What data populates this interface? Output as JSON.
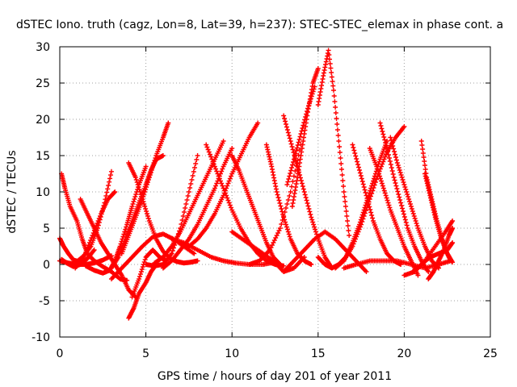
{
  "chart_data": {
    "type": "scatter",
    "title": "dSTEC Iono. truth (cagz, Lon=8, Lat=39, h=237): STEC-STEC_elemax in phase cont. a",
    "xlabel": "GPS time / hours of day 201 of year 2011",
    "ylabel": "dSTEC  / TECUs",
    "xlim": [
      0,
      25
    ],
    "ylim": [
      -10,
      30
    ],
    "xticks": [
      0,
      5,
      10,
      15,
      20,
      25
    ],
    "yticks": [
      -10,
      -5,
      0,
      5,
      10,
      15,
      20,
      25,
      30
    ],
    "grid": true,
    "marker": "+",
    "color": "#ff0000",
    "series": [
      {
        "x": [
          0.0,
          0.2,
          0.5,
          0.8,
          1.1
        ],
        "y": [
          3.6,
          2.6,
          1.5,
          0.6,
          0.4
        ]
      },
      {
        "x": [
          0.1,
          0.4,
          0.8,
          1.2,
          1.6,
          2.0
        ],
        "y": [
          0.7,
          0.2,
          -0.3,
          0.0,
          0.8,
          2.0
        ]
      },
      {
        "x": [
          0.0,
          0.5,
          1.0,
          1.5,
          2.0,
          2.5,
          3.0
        ],
        "y": [
          0.5,
          0.2,
          0.0,
          0.0,
          0.2,
          0.6,
          1.2
        ]
      },
      {
        "x": [
          0.1,
          0.3,
          0.6,
          1.0,
          1.3,
          1.6,
          2.0,
          2.5,
          3.0,
          3.5,
          3.9
        ],
        "y": [
          12.5,
          10.5,
          8.0,
          6.0,
          3.5,
          1.5,
          0.5,
          -0.3,
          -1.0,
          -2.0,
          -2.2
        ]
      },
      {
        "x": [
          1.2,
          1.6,
          2.0,
          2.4,
          2.8,
          3.2,
          3.6,
          4.0,
          4.4
        ],
        "y": [
          9.0,
          7.0,
          5.0,
          3.0,
          1.5,
          0.0,
          -1.5,
          -3.5,
          -4.5
        ]
      },
      {
        "x": [
          0.9,
          1.4,
          1.9,
          2.4,
          2.8,
          3.2
        ],
        "y": [
          -0.5,
          1.0,
          4.0,
          7.0,
          9.0,
          10.0
        ]
      },
      {
        "x": [
          1.0,
          1.4,
          1.8,
          2.2,
          2.6,
          3.0
        ],
        "y": [
          0.4,
          1.2,
          2.5,
          5.0,
          8.5,
          12.8
        ]
      },
      {
        "x": [
          1.5,
          2.0,
          2.5,
          2.9,
          3.2,
          3.5,
          3.9,
          4.2,
          4.6,
          5.0
        ],
        "y": [
          -0.2,
          -0.8,
          -1.2,
          -0.8,
          0.5,
          2.5,
          5.5,
          8.0,
          11.0,
          13.5
        ]
      },
      {
        "x": [
          3.0,
          3.4,
          3.8,
          4.2,
          4.6,
          5.0,
          5.3,
          5.6,
          6.0
        ],
        "y": [
          -0.5,
          1.0,
          3.5,
          6.0,
          8.5,
          11.0,
          13.0,
          14.5,
          15.0
        ]
      },
      {
        "x": [
          3.6,
          4.0,
          4.4,
          4.8,
          5.2,
          5.6,
          6.0,
          6.3
        ],
        "y": [
          1.5,
          4.0,
          6.5,
          9.0,
          12.0,
          15.0,
          17.5,
          19.5
        ]
      },
      {
        "x": [
          4.0,
          4.3,
          4.6,
          5.0,
          5.3,
          5.6
        ],
        "y": [
          -7.4,
          -6.0,
          -4.0,
          -2.5,
          -1.0,
          0.0
        ]
      },
      {
        "x": [
          4.2,
          4.6,
          5.0,
          5.4,
          5.8,
          6.2
        ],
        "y": [
          -4.5,
          -2.0,
          1.0,
          2.0,
          1.0,
          0.5
        ]
      },
      {
        "x": [
          3.0,
          3.6,
          4.2,
          4.8,
          5.4,
          6.0,
          6.6,
          7.2,
          7.8
        ],
        "y": [
          -2.0,
          -0.5,
          1.0,
          2.5,
          3.8,
          4.2,
          3.5,
          2.5,
          1.5
        ]
      },
      {
        "x": [
          4.0,
          4.4,
          4.8,
          5.2,
          5.6,
          6.0,
          6.4,
          6.8,
          7.2,
          7.6,
          8.0
        ],
        "y": [
          14.0,
          12.0,
          9.0,
          6.0,
          3.5,
          1.8,
          0.8,
          0.4,
          0.2,
          0.3,
          0.5
        ]
      },
      {
        "x": [
          5.0,
          5.5,
          6.0,
          6.5,
          7.0,
          7.5,
          8.0
        ],
        "y": [
          0.0,
          -0.2,
          0.0,
          1.5,
          5.0,
          10.0,
          15.0
        ]
      },
      {
        "x": [
          5.5,
          6.0,
          6.5,
          7.0,
          7.5,
          8.0,
          8.5,
          9.0,
          9.5
        ],
        "y": [
          0.2,
          1.0,
          2.5,
          4.5,
          7.0,
          9.5,
          12.0,
          14.5,
          17.0
        ]
      },
      {
        "x": [
          6.0,
          6.5,
          7.0,
          7.5,
          8.0,
          8.5,
          9.0,
          9.5,
          10.0
        ],
        "y": [
          -0.5,
          0.5,
          2.0,
          3.5,
          5.5,
          8.0,
          10.5,
          13.5,
          16.0
        ]
      },
      {
        "x": [
          7.5,
          8.0,
          8.5,
          9.0,
          9.5,
          10.0,
          10.5,
          11.0,
          11.5
        ],
        "y": [
          2.5,
          3.5,
          5.0,
          7.0,
          9.5,
          12.5,
          15.0,
          17.5,
          19.5
        ]
      },
      {
        "x": [
          6.5,
          7.2,
          8.0,
          8.8,
          9.5,
          10.2,
          11.0,
          11.8,
          12.5
        ],
        "y": [
          3.5,
          3.0,
          2.0,
          1.0,
          0.5,
          0.2,
          0.0,
          0.0,
          0.3
        ]
      },
      {
        "x": [
          8.5,
          9.0,
          9.5,
          10.0,
          10.5,
          11.0,
          11.5,
          12.0,
          12.5,
          13.0
        ],
        "y": [
          16.5,
          13.5,
          10.5,
          7.5,
          5.0,
          3.0,
          1.5,
          0.5,
          0.0,
          -0.2
        ]
      },
      {
        "x": [
          10.0,
          10.4,
          10.8,
          11.2,
          11.6,
          12.0,
          12.4,
          12.8
        ],
        "y": [
          15.0,
          13.0,
          10.5,
          8.0,
          5.5,
          3.0,
          1.0,
          0.0
        ]
      },
      {
        "x": [
          11.0,
          11.6,
          12.2,
          12.8,
          13.4,
          14.0
        ],
        "y": [
          0.0,
          0.5,
          2.0,
          5.0,
          10.0,
          16.5
        ]
      },
      {
        "x": [
          12.0,
          12.3,
          12.6,
          13.0,
          13.4,
          13.8,
          14.2,
          14.6
        ],
        "y": [
          16.5,
          13.5,
          10.0,
          6.5,
          3.5,
          1.5,
          0.5,
          0.0
        ]
      },
      {
        "x": [
          10.0,
          10.6,
          11.2,
          11.8,
          12.4,
          13.0,
          13.6,
          14.2
        ],
        "y": [
          4.5,
          3.5,
          2.5,
          1.5,
          0.5,
          -1.0,
          -0.5,
          1.0
        ]
      },
      {
        "x": [
          13.0,
          13.4,
          13.8,
          14.2,
          14.6,
          15.0,
          15.4,
          15.8
        ],
        "y": [
          20.5,
          17.0,
          13.5,
          10.0,
          6.5,
          3.5,
          1.0,
          -0.5
        ]
      },
      {
        "x": [
          13.5,
          13.8,
          14.1,
          14.4,
          14.7,
          15.0
        ],
        "y": [
          8.0,
          12.0,
          16.5,
          21.0,
          25.0,
          27.0
        ]
      },
      {
        "x": [
          13.2,
          13.6,
          14.0,
          14.4,
          14.8
        ],
        "y": [
          11.0,
          14.5,
          18.0,
          21.5,
          24.5
        ]
      },
      {
        "x": [
          15.0,
          15.3,
          15.6,
          15.9,
          16.2,
          16.5,
          16.8
        ],
        "y": [
          22.0,
          26.0,
          29.5,
          24.0,
          17.0,
          10.0,
          4.0
        ]
      },
      {
        "x": [
          13.0,
          13.6,
          14.2,
          14.8,
          15.4,
          16.0,
          16.6,
          17.2,
          17.8
        ],
        "y": [
          -1.0,
          0.5,
          2.0,
          3.5,
          4.5,
          3.5,
          2.0,
          0.5,
          -1.0
        ]
      },
      {
        "x": [
          15.0,
          15.4,
          15.8,
          16.2,
          16.6,
          17.0,
          17.4,
          17.8,
          18.2,
          18.6,
          19.0
        ],
        "y": [
          1.0,
          0.0,
          -0.5,
          0.0,
          1.0,
          3.0,
          5.5,
          8.5,
          11.5,
          14.5,
          17.0
        ]
      },
      {
        "x": [
          16.0,
          16.5,
          17.0,
          17.5,
          18.0,
          18.5,
          19.0,
          19.5,
          20.0
        ],
        "y": [
          -0.5,
          0.5,
          2.5,
          5.5,
          9.0,
          12.5,
          15.5,
          17.5,
          19.0
        ]
      },
      {
        "x": [
          17.0,
          17.4,
          17.8,
          18.2,
          18.6,
          19.0,
          19.4,
          19.8
        ],
        "y": [
          16.5,
          13.0,
          9.5,
          6.0,
          3.5,
          1.5,
          0.5,
          0.0
        ]
      },
      {
        "x": [
          18.0,
          18.4,
          18.8,
          19.2,
          19.6,
          20.0,
          20.4,
          20.8
        ],
        "y": [
          16.0,
          13.5,
          10.5,
          7.5,
          5.0,
          2.5,
          0.5,
          -1.5
        ]
      },
      {
        "x": [
          18.6,
          19.0,
          19.4,
          19.8,
          20.2,
          20.6,
          21.0,
          21.4
        ],
        "y": [
          19.5,
          16.0,
          12.0,
          8.5,
          5.0,
          2.5,
          0.5,
          -1.0
        ]
      },
      {
        "x": [
          19.2,
          19.6,
          20.0,
          20.4,
          20.8,
          21.2,
          21.6,
          22.0
        ],
        "y": [
          17.5,
          14.0,
          11.0,
          8.0,
          5.0,
          2.5,
          0.5,
          -0.5
        ]
      },
      {
        "x": [
          16.5,
          17.2,
          18.0,
          18.8,
          19.6,
          20.4,
          21.2,
          22.0,
          22.7
        ],
        "y": [
          -0.5,
          0.0,
          0.5,
          0.5,
          0.5,
          0.0,
          -0.5,
          0.0,
          0.5
        ]
      },
      {
        "x": [
          20.0,
          20.6,
          21.2,
          21.8,
          22.4,
          22.8
        ],
        "y": [
          -1.5,
          -1.0,
          0.5,
          2.5,
          4.5,
          6.0
        ]
      },
      {
        "x": [
          21.0,
          21.3,
          21.6,
          21.9,
          22.2,
          22.5,
          22.8
        ],
        "y": [
          17.0,
          12.0,
          9.0,
          6.0,
          3.5,
          1.5,
          0.3
        ]
      },
      {
        "x": [
          21.2,
          21.5,
          21.8,
          22.1,
          22.4,
          22.7
        ],
        "y": [
          12.5,
          9.5,
          6.5,
          4.0,
          2.0,
          0.5
        ]
      },
      {
        "x": [
          21.4,
          21.7,
          22.0,
          22.3,
          22.6,
          22.8
        ],
        "y": [
          -2.0,
          -1.0,
          0.5,
          2.0,
          4.0,
          5.0
        ]
      },
      {
        "x": [
          20.5,
          21.0,
          21.5,
          22.0,
          22.5,
          22.8
        ],
        "y": [
          -1.0,
          0.0,
          1.0,
          1.5,
          2.0,
          3.0
        ]
      }
    ]
  }
}
